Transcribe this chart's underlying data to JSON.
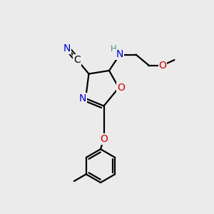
{
  "background_color": "#ebebeb",
  "atom_colors": {
    "C": "#000000",
    "N": "#0000cc",
    "O": "#cc0000",
    "H": "#4a8f8f",
    "default": "#000000"
  },
  "bond_color": "#000000",
  "bond_width": 1.6,
  "font_size_atoms": 10,
  "font_size_small": 8.5
}
